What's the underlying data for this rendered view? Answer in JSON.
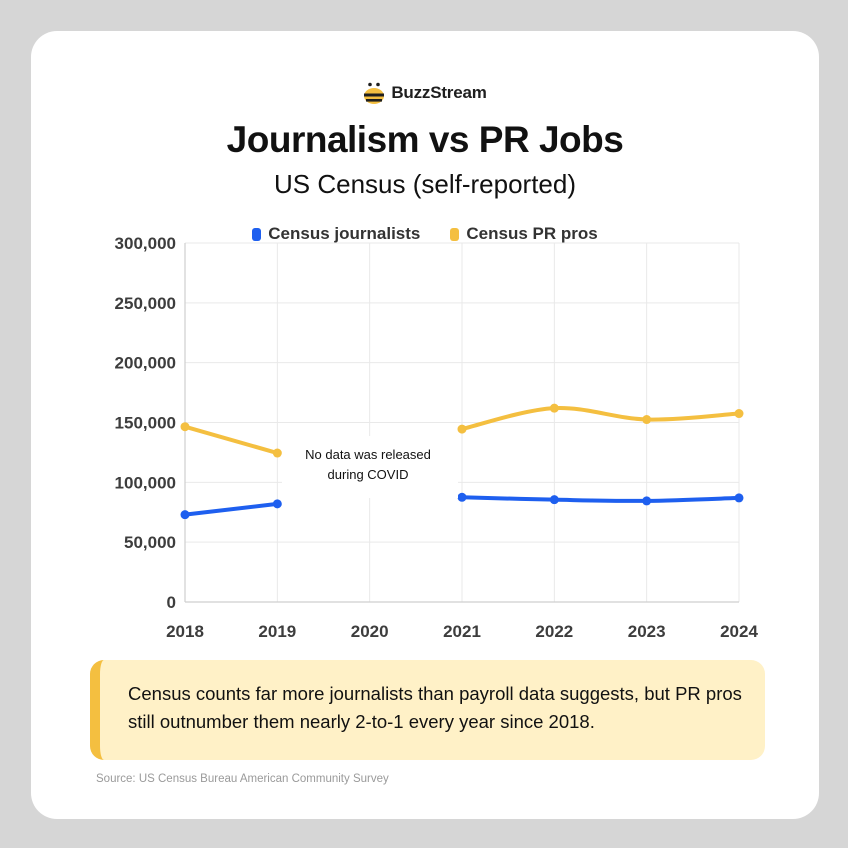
{
  "brand": {
    "name": "BuzzStream",
    "icon": "bee-icon"
  },
  "colors": {
    "journalists": "#1e5fef",
    "pr": "#f4bf40",
    "grid": "#e9e9e9",
    "tick": "#3d3d3d"
  },
  "chart_data": {
    "type": "line",
    "title": "Journalism vs PR Jobs",
    "subtitle": "US Census (self-reported)",
    "xlabel": "",
    "ylabel": "",
    "categories": [
      "2018",
      "2019",
      "2020",
      "2021",
      "2022",
      "2023",
      "2024"
    ],
    "y_ticks": [
      "0",
      "50,000",
      "100,000",
      "150,000",
      "200,000",
      "250,000",
      "300,000"
    ],
    "ylim": [
      0,
      300000
    ],
    "series": [
      {
        "name": "Census journalists",
        "color_key": "journalists",
        "values": [
          73000,
          82000,
          null,
          87500,
          85500,
          84500,
          87000
        ]
      },
      {
        "name": "Census PR pros",
        "color_key": "pr",
        "values": [
          146500,
          124500,
          null,
          144500,
          162000,
          152500,
          157500
        ]
      }
    ],
    "annotation": {
      "line1": "No data was released",
      "line2": "during COVID"
    },
    "grid": "vertical and horizontal",
    "legend_position": "top-center"
  },
  "callout": {
    "text": "Census counts far more journalists than payroll data suggests, but PR pros still outnumber them nearly 2-to-1 every year since 2018."
  },
  "source": "Source: US Census Bureau American Community Survey"
}
